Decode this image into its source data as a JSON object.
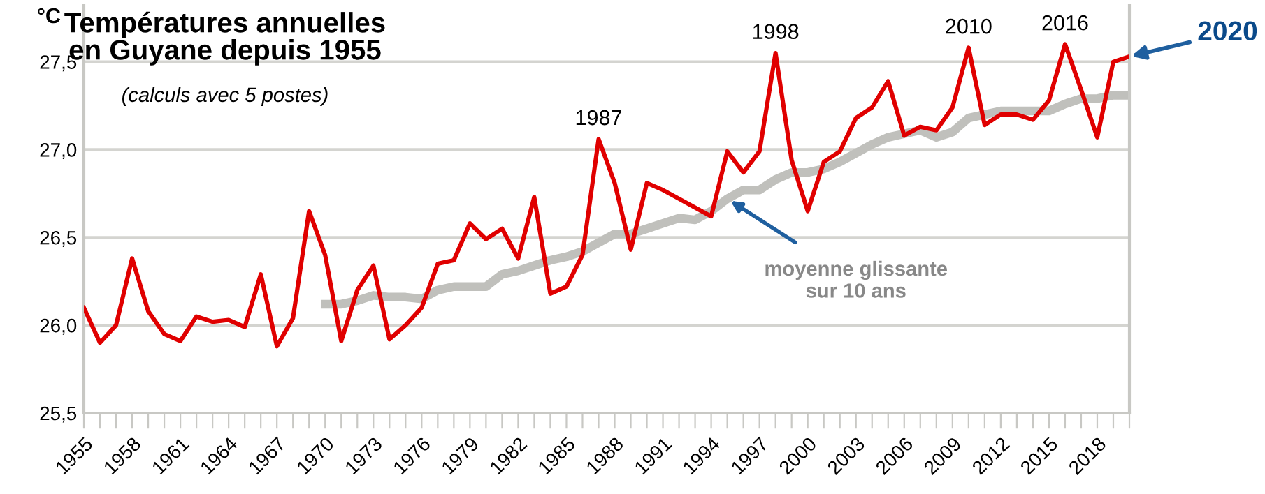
{
  "chart_data": {
    "type": "line",
    "title": "Températures annuelles\nen Guyane depuis 1955",
    "subtitle": "(calculs avec 5 postes)",
    "ylabel": "°C",
    "x": [
      1955,
      1956,
      1957,
      1958,
      1959,
      1960,
      1961,
      1962,
      1963,
      1964,
      1965,
      1966,
      1967,
      1968,
      1969,
      1970,
      1971,
      1972,
      1973,
      1974,
      1975,
      1976,
      1977,
      1978,
      1979,
      1980,
      1981,
      1982,
      1983,
      1984,
      1985,
      1986,
      1987,
      1988,
      1989,
      1990,
      1991,
      1992,
      1993,
      1994,
      1995,
      1996,
      1997,
      1998,
      1999,
      2000,
      2001,
      2002,
      2003,
      2004,
      2005,
      2006,
      2007,
      2008,
      2009,
      2010,
      2011,
      2012,
      2013,
      2014,
      2015,
      2016,
      2017,
      2018,
      2019,
      2020
    ],
    "series": [
      {
        "color": "#e00000",
        "values": [
          26.1,
          25.9,
          26.0,
          26.38,
          26.08,
          25.95,
          25.91,
          26.05,
          26.02,
          26.03,
          25.99,
          26.29,
          25.88,
          26.04,
          26.65,
          26.4,
          25.91,
          26.2,
          26.34,
          25.92,
          26.0,
          26.1,
          26.35,
          26.37,
          26.58,
          26.49,
          26.55,
          26.38,
          26.73,
          26.18,
          26.22,
          26.4,
          27.06,
          26.81,
          26.43,
          26.81,
          26.77,
          26.72,
          26.67,
          26.62,
          26.99,
          26.87,
          26.99,
          27.55,
          26.94,
          26.65,
          26.93,
          26.99,
          27.18,
          27.24,
          27.39,
          27.08,
          27.13,
          27.11,
          27.24,
          27.58,
          27.14,
          27.2,
          27.2,
          27.17,
          27.28,
          27.6,
          27.34,
          27.07,
          27.5,
          27.53
        ]
      },
      {
        "name": "moyenne glissante\nsur 10 ans",
        "color": "#c0c0bc",
        "values": [
          null,
          null,
          null,
          null,
          null,
          null,
          null,
          null,
          null,
          null,
          null,
          null,
          null,
          null,
          null,
          26.12,
          26.12,
          26.14,
          26.17,
          26.16,
          26.16,
          26.15,
          26.2,
          26.22,
          26.22,
          26.22,
          26.29,
          26.31,
          26.34,
          26.37,
          26.39,
          26.42,
          26.47,
          26.52,
          26.52,
          26.55,
          26.58,
          26.61,
          26.6,
          26.65,
          26.72,
          26.77,
          26.77,
          26.83,
          26.87,
          26.87,
          26.89,
          26.93,
          26.98,
          27.03,
          27.07,
          27.09,
          27.11,
          27.07,
          27.1,
          27.18,
          27.2,
          27.22,
          27.22,
          27.22,
          27.22,
          27.26,
          27.29,
          27.29,
          27.31,
          27.31
        ]
      }
    ],
    "annotations": [
      {
        "text": "1987",
        "x": 1987,
        "y": 27.06
      },
      {
        "text": "1998",
        "x": 1998,
        "y": 27.55
      },
      {
        "text": "2010",
        "x": 2010,
        "y": 27.58
      },
      {
        "text": "2016",
        "x": 2016,
        "y": 27.6
      },
      {
        "text": "2020",
        "x": 2020,
        "y": 27.53
      }
    ],
    "xlim": [
      1955,
      2020
    ],
    "ylim": [
      25.5,
      27.82
    ],
    "xticks": [
      1955,
      {
        "value": 1956,
        "label": null
      },
      {
        "value": 1957,
        "label": null
      },
      1958,
      {
        "value": 1959,
        "label": null
      },
      {
        "value": 1960,
        "label": null
      },
      1961,
      {
        "value": 1962,
        "label": null
      },
      {
        "value": 1963,
        "label": null
      },
      1964,
      {
        "value": 1965,
        "label": null
      },
      {
        "value": 1966,
        "label": null
      },
      1967,
      {
        "value": 1968,
        "label": null
      },
      {
        "value": 1969,
        "label": null
      },
      1970,
      {
        "value": 1971,
        "label": null
      },
      {
        "value": 1972,
        "label": null
      },
      1973,
      {
        "value": 1974,
        "label": null
      },
      {
        "value": 1975,
        "label": null
      },
      1976,
      {
        "value": 1977,
        "label": null
      },
      {
        "value": 1978,
        "label": null
      },
      1979,
      {
        "value": 1980,
        "label": null
      },
      {
        "value": 1981,
        "label": null
      },
      1982,
      {
        "value": 1983,
        "label": null
      },
      {
        "value": 1984,
        "label": null
      },
      1985,
      {
        "value": 1986,
        "label": null
      },
      {
        "value": 1987,
        "label": null
      },
      1988,
      {
        "value": 1989,
        "label": null
      },
      {
        "value": 1990,
        "label": null
      },
      1991,
      {
        "value": 1992,
        "label": null
      },
      {
        "value": 1993,
        "label": null
      },
      1994,
      {
        "value": 1995,
        "label": null
      },
      {
        "value": 1996,
        "label": null
      },
      1997,
      {
        "value": 1998,
        "label": null
      },
      {
        "value": 1999,
        "label": null
      },
      2000,
      {
        "value": 2001,
        "label": null
      },
      {
        "value": 2002,
        "label": null
      },
      2003,
      {
        "value": 2004,
        "label": null
      },
      {
        "value": 2005,
        "label": null
      },
      2006,
      {
        "value": 2007,
        "label": null
      },
      {
        "value": 2008,
        "label": null
      },
      2009,
      {
        "value": 2010,
        "label": null
      },
      {
        "value": 2011,
        "label": null
      },
      2012,
      {
        "value": 2013,
        "label": null
      },
      {
        "value": 2014,
        "label": null
      },
      2015,
      {
        "value": 2016,
        "label": null
      },
      {
        "value": 2017,
        "label": null
      },
      2018,
      {
        "value": 2019,
        "label": null
      },
      {
        "value": 2020,
        "label": null
      }
    ],
    "yticks": [
      {
        "value": 25.5,
        "label": "25,5"
      },
      {
        "value": 26.0,
        "label": "26,0"
      },
      {
        "value": 26.5,
        "label": "26,5"
      },
      {
        "value": 27.0,
        "label": "27,0"
      },
      {
        "value": 27.5,
        "label": "27,5"
      }
    ],
    "grid": "y",
    "legend": false,
    "marker": "none",
    "line_style": "solid"
  }
}
